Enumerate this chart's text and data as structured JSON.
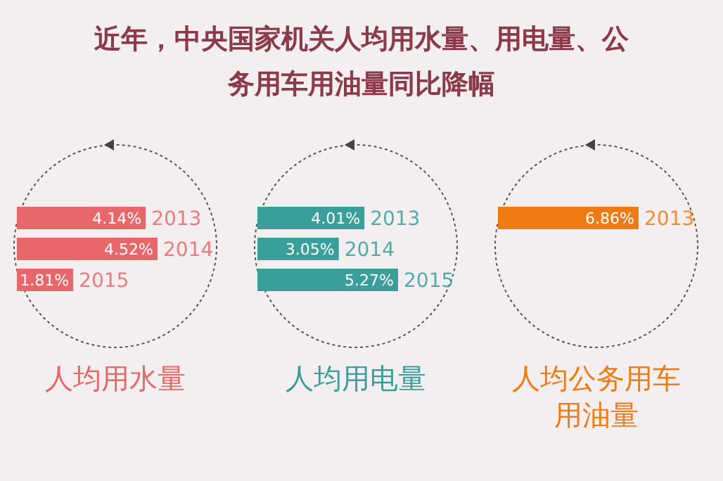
{
  "chart_data": [
    {
      "type": "other",
      "title": "近年，中央国家机关人均用水量、用电量、公务用车用油量同比降幅"
    },
    {
      "type": "bar",
      "orientation": "horizontal",
      "title": "人均用水量",
      "categories": [
        "2013",
        "2014",
        "2015"
      ],
      "values": [
        4.14,
        4.52,
        1.81
      ],
      "value_labels": [
        "4.14%",
        "4.52%",
        "1.81%"
      ],
      "color": "#e8676a"
    },
    {
      "type": "bar",
      "orientation": "horizontal",
      "title": "人均用电量",
      "categories": [
        "2013",
        "2014",
        "2015"
      ],
      "values": [
        4.01,
        3.05,
        5.27
      ],
      "value_labels": [
        "4.01%",
        "3.05%",
        "5.27%"
      ],
      "color": "#3a9e9a"
    },
    {
      "type": "bar",
      "orientation": "horizontal",
      "title": "人均公务用车用油量",
      "categories": [
        "2013"
      ],
      "values": [
        6.86
      ],
      "value_labels": [
        "6.86%"
      ],
      "color": "#f07b12"
    }
  ]
}
